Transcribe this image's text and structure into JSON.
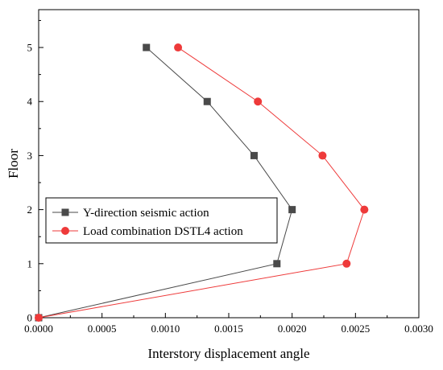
{
  "chart_data": {
    "type": "line",
    "title": "",
    "xlabel": "Interstory displacement angle",
    "ylabel": "Floor",
    "xlim": [
      0,
      0.003
    ],
    "ylim": [
      0,
      5.7
    ],
    "x_ticks": [
      "0.0000",
      "0.0005",
      "0.0010",
      "0.0015",
      "0.0020",
      "0.0025",
      "0.0030"
    ],
    "y_ticks": [
      "0",
      "1",
      "2",
      "3",
      "4",
      "5"
    ],
    "grid": false,
    "legend_position": "center-left",
    "series": [
      {
        "name": "Y-direction seismic action",
        "color": "#4a4a4a",
        "marker": "square",
        "points": [
          {
            "x": 0.0,
            "y": 0
          },
          {
            "x": 0.00188,
            "y": 1
          },
          {
            "x": 0.002,
            "y": 2
          },
          {
            "x": 0.0017,
            "y": 3
          },
          {
            "x": 0.00133,
            "y": 4
          },
          {
            "x": 0.00085,
            "y": 5
          }
        ]
      },
      {
        "name": "Load combination DSTL4 action",
        "color": "#ee3a3a",
        "marker": "circle",
        "points": [
          {
            "x": 0.0,
            "y": 0
          },
          {
            "x": 0.00243,
            "y": 1
          },
          {
            "x": 0.00257,
            "y": 2
          },
          {
            "x": 0.00224,
            "y": 3
          },
          {
            "x": 0.00173,
            "y": 4
          },
          {
            "x": 0.0011,
            "y": 5
          }
        ]
      }
    ]
  }
}
